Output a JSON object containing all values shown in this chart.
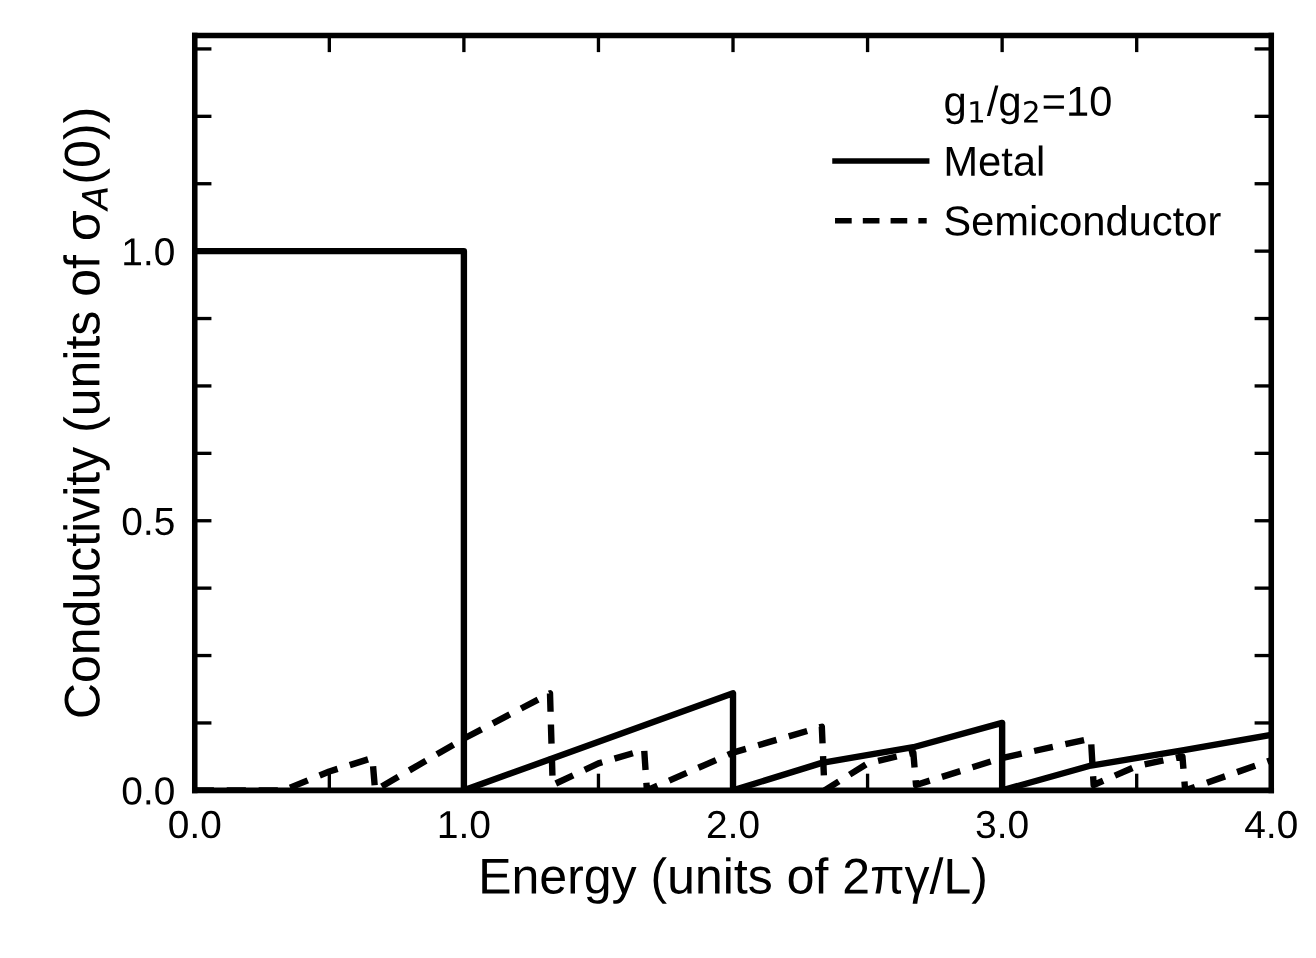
{
  "chart_data": {
    "type": "line",
    "xlabel": "Energy (units of 2πγ/L)",
    "ylabel": "Conductivity (units of σ$_{A}$(0))",
    "legend_title": "g$_{1}$/g$_{2}$=10",
    "legend": "top right",
    "grid": false,
    "marker": "none",
    "xlim": [
      0,
      4
    ],
    "ylim": [
      0,
      1.4
    ],
    "xticks": [
      {
        "value": 0,
        "label": "0.0"
      },
      {
        "value": 0.5,
        "label": null
      },
      {
        "value": 1,
        "label": "1.0"
      },
      {
        "value": 1.5,
        "label": null
      },
      {
        "value": 2,
        "label": "2.0"
      },
      {
        "value": 2.5,
        "label": null
      },
      {
        "value": 3,
        "label": "3.0"
      },
      {
        "value": 3.5,
        "label": null
      },
      {
        "value": 4,
        "label": "4.0"
      }
    ],
    "yticks": [
      {
        "value": 0,
        "label": "0.0"
      },
      {
        "value": 0.125,
        "label": null
      },
      {
        "value": 0.25,
        "label": null
      },
      {
        "value": 0.375,
        "label": null
      },
      {
        "value": 0.5,
        "label": "0.5"
      },
      {
        "value": 0.625,
        "label": null
      },
      {
        "value": 0.75,
        "label": null
      },
      {
        "value": 0.875,
        "label": null
      },
      {
        "value": 1,
        "label": "1.0"
      },
      {
        "value": 1.125,
        "label": null
      },
      {
        "value": 1.25,
        "label": null
      },
      {
        "value": 1.375,
        "label": null
      }
    ],
    "series": [
      {
        "name": "Metal",
        "color": "#000000",
        "line_style": "solid",
        "x": [
          0,
          1,
          1,
          2,
          2,
          2.33,
          2.67,
          3,
          3,
          3.33,
          3.67,
          4
        ],
        "values": [
          1,
          1,
          0,
          0.18,
          0,
          0.051,
          0.08,
          0.125,
          0,
          0.046,
          0.074,
          0.103
        ]
      },
      {
        "name": "Semiconductor",
        "color": "#000000",
        "line_style": "dashed",
        "x": [
          0,
          0.33,
          0.5,
          0.66,
          0.67,
          1,
          1.32,
          1.33,
          1.5,
          1.67,
          1.68,
          2,
          2.33,
          2.34,
          2.5,
          2.67,
          2.68,
          3,
          3.33,
          3.34,
          3.5,
          3.67,
          3.68,
          4
        ],
        "values": [
          0,
          0,
          0.035,
          0.06,
          0,
          0.096,
          0.18,
          0.01,
          0.05,
          0.075,
          0,
          0.07,
          0.118,
          0,
          0.05,
          0.07,
          0.01,
          0.06,
          0.096,
          0.01,
          0.045,
          0.063,
          0,
          0.056
        ]
      }
    ]
  }
}
